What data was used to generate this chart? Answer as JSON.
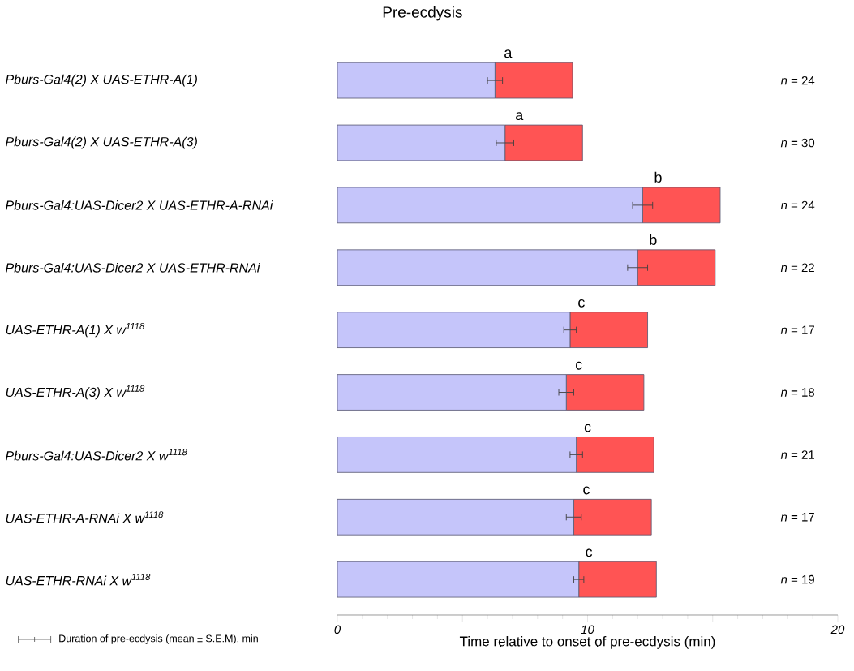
{
  "chart_data": {
    "type": "bar",
    "orientation": "horizontal",
    "stacked": true,
    "title": "Pre-ecdysis",
    "xlabel": "Time relative to onset of pre-ecdysis (min)",
    "categories": [
      "Pburs-Gal4(2) X UAS-ETHR-A(1)",
      "Pburs-Gal4(2) X UAS-ETHR-A(3)",
      "Pburs-Gal4:UAS-Dicer2 X UAS-ETHR-A-RNAi",
      "Pburs-Gal4:UAS-Dicer2 X UAS-ETHR-RNAi",
      "UAS-ETHR-A(1) X w$^{1118}$",
      "UAS-ETHR-A(3) X w$^{1118}$",
      "Pburs-Gal4:UAS-Dicer2 X w$^{1118}$",
      "UAS-ETHR-A-RNAi X w$^{1118}$",
      "UAS-ETHR-RNAi X w$^{1118}$"
    ],
    "series": [
      {
        "color": "#c5c5fa",
        "values": [
          6.3,
          6.7,
          12.2,
          12.0,
          9.3,
          9.15,
          9.55,
          9.45,
          9.65
        ],
        "errors": [
          0.3,
          0.35,
          0.4,
          0.4,
          0.25,
          0.3,
          0.25,
          0.3,
          0.2
        ]
      },
      {
        "color": "#ff5454",
        "values": [
          3.1,
          3.1,
          3.1,
          3.1,
          3.1,
          3.1,
          3.1,
          3.1,
          3.1
        ]
      }
    ],
    "xlim": [
      0,
      20
    ],
    "xticks": [
      0,
      {
        "value": 5,
        "label": null
      },
      10,
      {
        "value": 15,
        "label": null
      },
      20
    ],
    "annotations": [
      "Duration of pre-ecdysis (mean ± S.E.M), min",
      "a",
      "a",
      "b",
      "b",
      "c",
      "c",
      "c",
      "c",
      "c",
      "*n* = 24",
      "*n* = 30",
      "*n* = 24",
      "*n* = 22",
      "*n* = 17",
      "*n* = 18",
      "*n* = 21",
      "*n* = 17",
      "*n* = 19"
    ]
  }
}
